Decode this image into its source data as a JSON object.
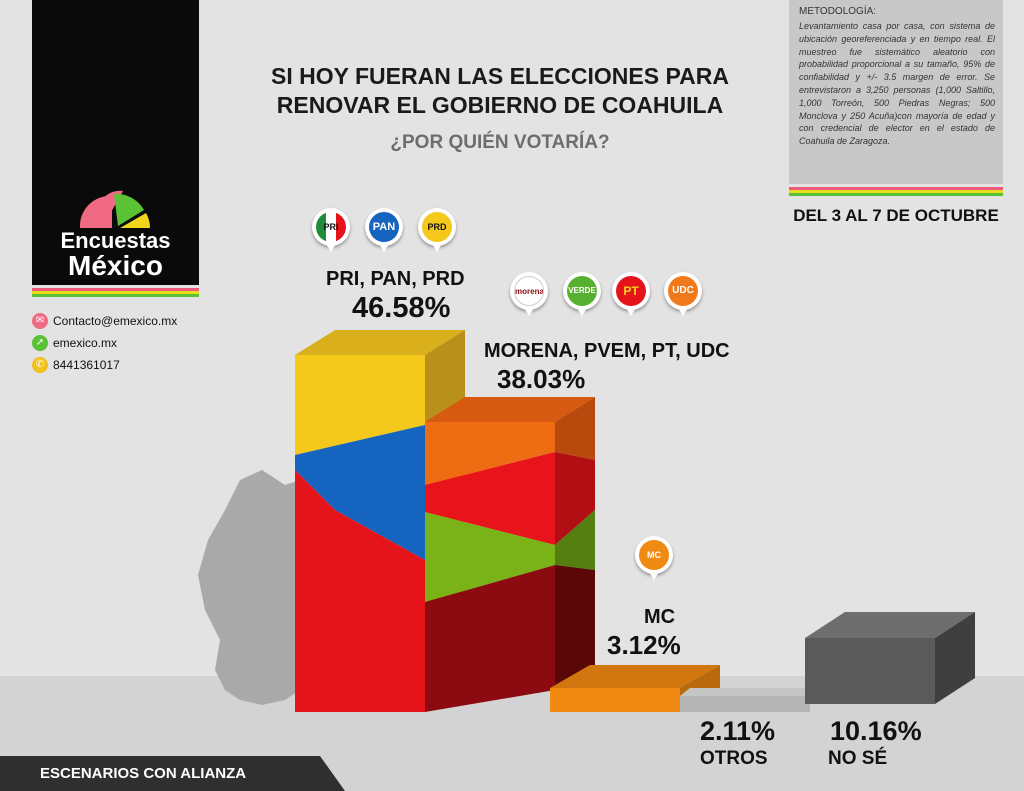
{
  "title_line1": "SI HOY FUERAN LAS ELECCIONES PARA",
  "title_line2": "RENOVAR EL GOBIERNO DE COAHUILA",
  "subtitle": "¿POR QUIÉN VOTARÍA?",
  "logo": {
    "line1": "Encuestas",
    "line2": "México"
  },
  "contacts": {
    "email": "Contacto@emexico.mx",
    "web": "emexico.mx",
    "phone": "8441361017"
  },
  "methodology": {
    "title": "METODOLOGÍA:",
    "text": "Levantamiento casa por casa, con sistema de ubicación georeferenciada y en tiempo real. El muestreo fue sistemático aleatorio con probabilidad proporcional a su tamaño, 95% de confiabilidad y +/- 3.5 margen de error. Se entrevistaron a 3,250 personas (1,000 Saltillo, 1,000 Torreón, 500 Piedras Negras; 500 Monclova y 250 Acuña)con mayoría de edad y con credencial de elector en el estado de Coahuila de Zaragoza."
  },
  "dates": "DEL 3 AL 7 DE OCTUBRE",
  "footer": "ESCENARIOS CON ALIANZA",
  "party_icons": {
    "pri": "PRI",
    "pan": "PAN",
    "prd": "PRD",
    "morena": "morena",
    "verde": "VERDE",
    "pt": "PT",
    "udc": "UDC",
    "mc": "MC"
  },
  "chart_data": {
    "type": "bar",
    "title": "SI HOY FUERAN LAS ELECCIONES PARA RENOVAR EL GOBIERNO DE COAHUILA",
    "categories": [
      "PRI, PAN, PRD",
      "MORENA, PVEM, PT, UDC",
      "MC",
      "OTROS",
      "NO SÉ"
    ],
    "values": [
      46.58,
      38.03,
      3.12,
      2.11,
      10.16
    ],
    "value_labels": [
      "46.58%",
      "38.03%",
      "3.12%",
      "2.11%",
      "10.16%"
    ],
    "category_labels": [
      "PRI, PAN, PRD",
      "MORENA, PVEM, PT, UDC",
      "MC",
      "OTROS",
      "NO SÉ"
    ],
    "colors": {
      "alianza_pri": [
        "#f5c91b",
        "#1565c0",
        "#e5141b"
      ],
      "alianza_morena": [
        "#ef6d12",
        "#e8141b",
        "#79b318",
        "#8b0b10"
      ],
      "mc": "#f08a13",
      "otros": "#b5b5b5",
      "nose": "#5a5a5a",
      "state_map": "#a9a9a9"
    }
  },
  "stripe_colors": [
    "#f05a7e",
    "#e8dd1b",
    "#58c234"
  ]
}
